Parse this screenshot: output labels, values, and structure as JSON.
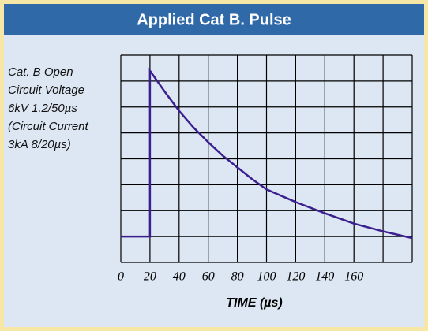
{
  "chart_data": {
    "type": "line",
    "title": "Applied Cat B. Pulse",
    "annotation": [
      "Cat. B Open",
      "Circuit Voltage",
      "6kV 1.2/50µs",
      "(Circuit Current",
      "3kA 8/20µs)"
    ],
    "xlabel": "TIME (µs)",
    "xlim": [
      0,
      200
    ],
    "ylim": [
      0,
      8
    ],
    "xticks": [
      0,
      20,
      40,
      60,
      80,
      100,
      120,
      140,
      160
    ],
    "xgrid": [
      0,
      20,
      40,
      60,
      80,
      100,
      120,
      140,
      160,
      180,
      200
    ],
    "ygrid": [
      0,
      1,
      2,
      3,
      4,
      5,
      6,
      7,
      8
    ],
    "grid": true,
    "x": [
      0,
      20,
      20,
      30,
      40,
      50,
      60,
      70,
      80,
      90,
      100,
      120,
      140,
      160,
      180,
      200
    ],
    "series": [
      {
        "color": "#3b1f8e",
        "values": [
          1,
          1,
          7.4,
          6.6,
          5.85,
          5.2,
          4.64,
          4.12,
          3.67,
          3.22,
          2.82,
          2.33,
          1.9,
          1.5,
          1.2,
          0.94
        ]
      }
    ]
  }
}
